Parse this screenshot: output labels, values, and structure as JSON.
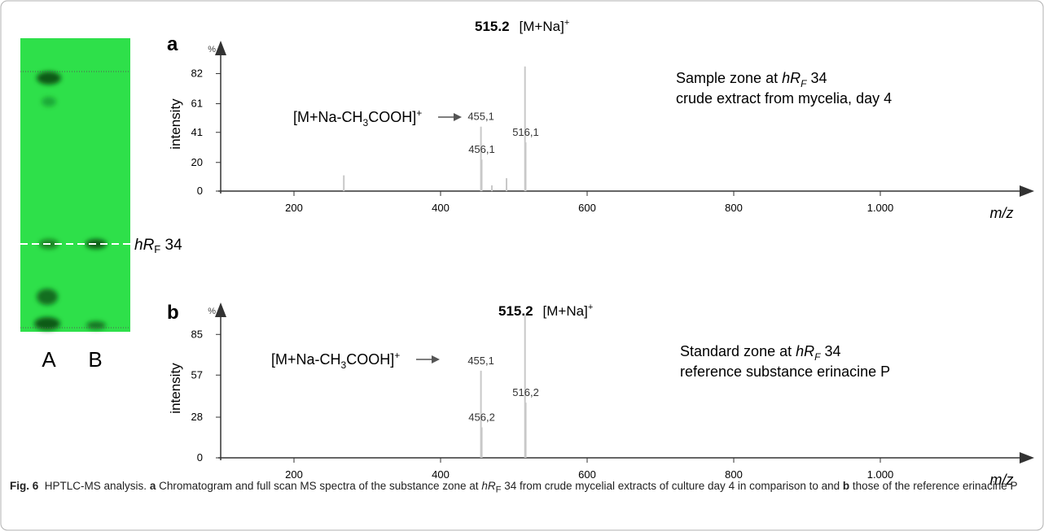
{
  "plate": {
    "lanes": [
      "A",
      "B"
    ],
    "zone_label": [
      "hR",
      "F",
      " 34"
    ]
  },
  "chart_data": [
    {
      "type": "bar",
      "panel": "a",
      "base_peak": "515.2",
      "base_peak_ion": [
        "[M+Na]",
        "+"
      ],
      "annotation": [
        "[M+Na-CH",
        "3",
        "COOH]",
        "+"
      ],
      "description": [
        "Sample zone at ",
        "hR",
        "F",
        " 34",
        "crude extract from mycelia, day 4"
      ],
      "y_unit": "%",
      "ylabel": "intensity",
      "xlabel": "m/z",
      "xlim": [
        100,
        1210
      ],
      "xticks": [
        200,
        400,
        600,
        800,
        {
          "value": 1000,
          "label": "1.000"
        }
      ],
      "ylim": [
        0,
        105
      ],
      "yticks": [
        0,
        20,
        41,
        61,
        82
      ],
      "color": "#c8c8c8",
      "x": [
        268,
        455.1,
        456.1,
        470,
        490,
        515.2,
        516.1
      ],
      "values": [
        11,
        45,
        22,
        4,
        9,
        87,
        34
      ],
      "x_labels": [
        null,
        "455,1",
        "456,1",
        null,
        null,
        null,
        "516,1"
      ]
    },
    {
      "type": "bar",
      "panel": "b",
      "base_peak": "515.2",
      "base_peak_ion": [
        "[M+Na]",
        "+"
      ],
      "annotation": [
        "[M+Na-CH",
        "3",
        "COOH]",
        "+"
      ],
      "description": [
        "Standard zone at ",
        "hR",
        "F",
        " 34",
        "reference substance erinacine P"
      ],
      "y_unit": "%",
      "ylabel": "intensity",
      "xlabel": "m/z",
      "xlim": [
        100,
        1210
      ],
      "xticks": [
        200,
        400,
        600,
        800,
        {
          "value": 1000,
          "label": "1.000"
        }
      ],
      "ylim": [
        0,
        107
      ],
      "yticks": [
        0,
        28,
        57,
        85
      ],
      "color": "#c8c8c8",
      "x": [
        455.1,
        456.2,
        515.2,
        516.2
      ],
      "values": [
        60,
        21,
        98,
        38
      ],
      "x_labels": [
        "455,1",
        "456,2",
        null,
        "516,2"
      ]
    }
  ],
  "caption": {
    "label": "Fig. 6",
    "title": "HPTLC-MS analysis.",
    "parts": [
      "a",
      " Chromatogram and full scan MS spectra of the substance zone at ",
      "hR",
      "F",
      " 34 from crude mycelial extracts of culture day 4 in comparison to and ",
      "b",
      " those of the reference erinacine P"
    ]
  }
}
